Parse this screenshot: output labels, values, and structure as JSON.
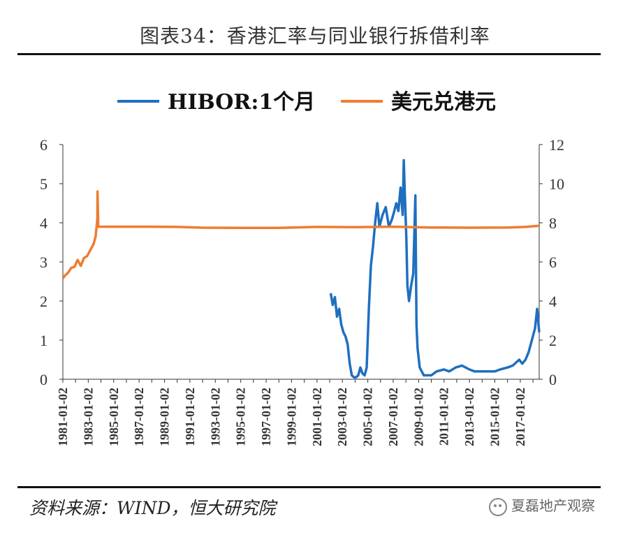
{
  "header": {
    "title": "图表34：香港汇率与同业银行拆借利率"
  },
  "footer": {
    "source": "资料来源：WIND，恒大研究院",
    "watermark": "夏磊地产观察",
    "watermark_icon": "wechat-icon"
  },
  "colors": {
    "hibor": "#1f6fc0",
    "usd_hkd": "#ed7d31",
    "axis": "#333333"
  },
  "chart_data": {
    "type": "line",
    "title": "",
    "legend_position": "top",
    "grid": false,
    "x_tick_labels": [
      "1981-01-02",
      "1983-01-02",
      "1985-01-02",
      "1987-01-02",
      "1989-01-02",
      "1991-01-02",
      "1993-01-02",
      "1995-01-02",
      "1997-01-02",
      "1999-01-02",
      "2001-01-02",
      "2003-01-02",
      "2005-01-02",
      "2007-01-02",
      "2009-01-02",
      "2011-01-02",
      "2013-01-02",
      "2015-01-02",
      "2017-01-02"
    ],
    "xlim": [
      "1981-01-02",
      "2018-06-30"
    ],
    "y_left": {
      "ticks": [
        0,
        1,
        2,
        3,
        4,
        5,
        6
      ],
      "ylim": [
        0,
        6
      ]
    },
    "y_right": {
      "ticks": [
        0,
        2,
        4,
        6,
        8,
        10,
        12
      ],
      "ylim": [
        0,
        12
      ]
    },
    "series": [
      {
        "name": "HIBOR:1个月",
        "axis": "left",
        "x": [
          "2002-02-01",
          "2002-04-01",
          "2002-06-01",
          "2002-08-01",
          "2002-10-01",
          "2002-12-01",
          "2003-02-01",
          "2003-04-01",
          "2003-06-01",
          "2003-08-01",
          "2003-10-01",
          "2003-12-01",
          "2004-02-01",
          "2004-04-01",
          "2004-06-01",
          "2004-08-01",
          "2004-10-01",
          "2004-12-01",
          "2005-02-01",
          "2005-04-01",
          "2005-06-01",
          "2005-08-01",
          "2005-10-01",
          "2005-12-01",
          "2006-03-01",
          "2006-06-01",
          "2006-09-01",
          "2006-12-01",
          "2007-02-01",
          "2007-04-01",
          "2007-06-01",
          "2007-08-01",
          "2007-10-01",
          "2007-11-01",
          "2007-12-01",
          "2008-01-15",
          "2008-02-15",
          "2008-04-01",
          "2008-06-01",
          "2008-08-01",
          "2008-10-01",
          "2008-11-01",
          "2008-12-01",
          "2009-02-01",
          "2009-06-01",
          "2010-01-01",
          "2010-06-01",
          "2011-01-01",
          "2011-06-01",
          "2011-12-01",
          "2012-06-01",
          "2013-01-01",
          "2013-06-01",
          "2014-01-01",
          "2014-06-01",
          "2015-01-01",
          "2015-06-01",
          "2016-01-01",
          "2016-06-01",
          "2016-12-01",
          "2017-03-01",
          "2017-06-01",
          "2017-09-01",
          "2017-12-01",
          "2018-03-01",
          "2018-05-01",
          "2018-06-30"
        ],
        "values": [
          2.2,
          1.9,
          2.1,
          1.6,
          1.8,
          1.4,
          1.2,
          1.1,
          0.9,
          0.4,
          0.1,
          0.05,
          0.05,
          0.1,
          0.3,
          0.15,
          0.1,
          0.3,
          1.8,
          2.9,
          3.4,
          4.0,
          4.5,
          3.9,
          4.2,
          4.4,
          3.9,
          4.1,
          4.3,
          4.5,
          4.3,
          4.9,
          4.2,
          5.6,
          4.8,
          3.6,
          2.4,
          2.0,
          2.4,
          2.7,
          4.7,
          1.4,
          0.8,
          0.3,
          0.1,
          0.1,
          0.2,
          0.25,
          0.2,
          0.3,
          0.35,
          0.25,
          0.2,
          0.2,
          0.2,
          0.2,
          0.25,
          0.3,
          0.35,
          0.5,
          0.4,
          0.5,
          0.7,
          1.0,
          1.3,
          1.8,
          1.2
        ]
      },
      {
        "name": "美元兑港元",
        "axis": "right",
        "x": [
          "1981-01-02",
          "1981-03-01",
          "1981-06-01",
          "1981-09-01",
          "1981-12-01",
          "1982-03-01",
          "1982-06-01",
          "1982-09-01",
          "1982-12-01",
          "1983-03-01",
          "1983-06-01",
          "1983-08-01",
          "1983-09-20",
          "1983-09-24",
          "1983-10-17",
          "1984-01-01",
          "1985-01-01",
          "1986-01-01",
          "1988-01-01",
          "1990-01-01",
          "1992-01-01",
          "1995-01-01",
          "1998-01-01",
          "2001-01-01",
          "2004-01-01",
          "2007-01-01",
          "2010-01-01",
          "2013-01-01",
          "2016-01-01",
          "2017-06-01",
          "2018-06-30"
        ],
        "values": [
          5.15,
          5.3,
          5.45,
          5.7,
          5.75,
          6.1,
          5.8,
          6.2,
          6.3,
          6.6,
          6.9,
          7.3,
          8.2,
          9.6,
          7.8,
          7.8,
          7.8,
          7.8,
          7.8,
          7.79,
          7.75,
          7.74,
          7.74,
          7.79,
          7.78,
          7.8,
          7.76,
          7.75,
          7.76,
          7.79,
          7.85
        ]
      }
    ]
  }
}
